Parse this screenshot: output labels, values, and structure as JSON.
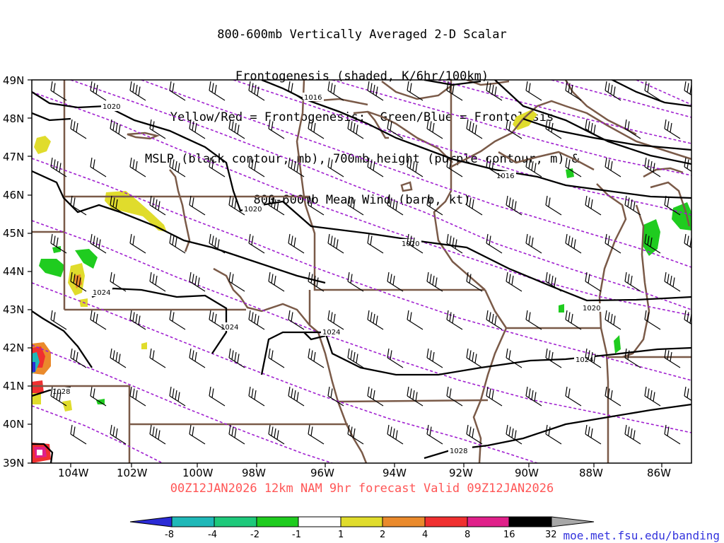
{
  "title_lines": [
    "800-600mb Vertically Averaged 2-D Scalar",
    "Frontogenesis (shaded, K/6hr/100km)",
    "Yellow/Red = Frontogenesis;  Green/Blue = Frontolysis",
    "MSLP (black contour, mb), 700mb height (purple contour, m) &",
    "800-600mb Mean Wind (barb, kt)"
  ],
  "valid_text": "00Z12JAN2026 12km NAM 9hr forecast Valid 09Z12JAN2026",
  "credit": "moe.met.fsu.edu/banding",
  "lat_labels": [
    "49N",
    "48N",
    "47N",
    "46N",
    "45N",
    "44N",
    "43N",
    "42N",
    "41N",
    "40N",
    "39N"
  ],
  "lon_labels": [
    "104W",
    "102W",
    "100W",
    "98W",
    "96W",
    "94W",
    "92W",
    "90W",
    "88W",
    "86W"
  ],
  "mslp_labels": [
    "1016",
    "1020",
    "1020",
    "1020",
    "1016",
    "1024",
    "1024",
    "1024",
    "1020",
    "1024",
    "1028",
    "1028"
  ],
  "colorbar": {
    "labels": [
      "-8",
      "-4",
      "-2",
      "-1",
      "1",
      "2",
      "4",
      "8",
      "16",
      "32"
    ],
    "colors": [
      "#2b2bd6",
      "#1fb8b8",
      "#1ec97b",
      "#1fcc1f",
      "#ffffff",
      "#e0dc2c",
      "#ea8a2c",
      "#f03030",
      "#e0208a",
      "#000000",
      "#a8a8a8"
    ]
  },
  "colors": {
    "borders": "#7a5a48",
    "height_contour": "#a020d0",
    "mslp_contour": "#000000",
    "valid_text": "#ff5555",
    "credit": "#3333dd"
  }
}
